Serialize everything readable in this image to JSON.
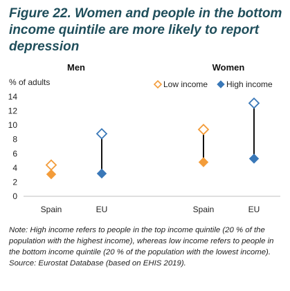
{
  "title": "Figure 22. Women and people in the bottom income quintile are more likely to report depression",
  "chart_data": {
    "type": "dot",
    "ylabel": "% of adults",
    "ylim": [
      0,
      14
    ],
    "yticks": [
      0,
      2,
      4,
      6,
      8,
      10,
      12,
      14
    ],
    "grid": false,
    "legend_position": "top-right",
    "colors": {
      "low_income": "#f39c3a",
      "high_income": "#3a78b8",
      "connector": "#111111",
      "axis": "#bfbfbf"
    },
    "panels": [
      {
        "title": "Men",
        "categories": [
          "Spain",
          "EU"
        ]
      },
      {
        "title": "Women",
        "categories": [
          "Spain",
          "EU"
        ]
      }
    ],
    "series": [
      {
        "name": "Low income",
        "marker": "hollow-diamond",
        "color": "#f39c3a",
        "values_by_panel": [
          [
            3.1,
            3.2
          ],
          [
            4.8,
            5.3
          ]
        ]
      },
      {
        "name": "High income",
        "marker": "hollow-diamond",
        "color": "#3a78b8",
        "values_by_panel": [
          [
            4.4,
            8.8
          ],
          [
            9.4,
            13.1
          ]
        ]
      }
    ]
  },
  "note": "Note: High income refers to people in the top income quintile (20 % of the population with the highest income), whereas low income refers to people in the bottom income quintile (20 % of the population with the lowest income).",
  "source": "Source: Eurostat Database (based on EHIS 2019)."
}
